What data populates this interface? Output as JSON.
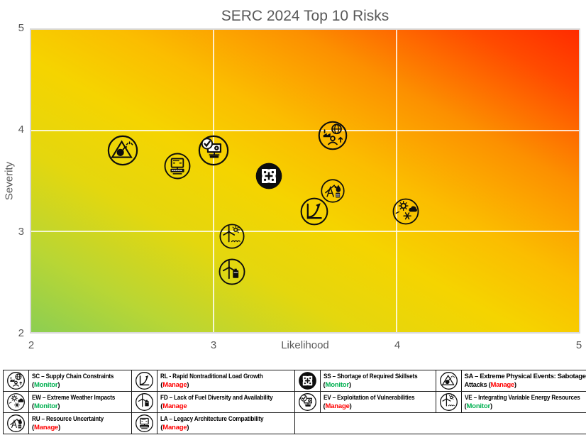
{
  "title": "SERC 2024 Top 10 Risks",
  "axes": {
    "xlabel": "Likelihood",
    "ylabel": "Severity",
    "x_ticks": [
      "2",
      "3",
      "4",
      "5"
    ],
    "y_ticks": [
      "5",
      "4",
      "3",
      "2"
    ]
  },
  "colors": {
    "monitor_green": "#00B050",
    "manage_red": "#FF0000",
    "title_text": "#595959",
    "heat_green": "#8CCE52",
    "heat_yellow": "#F5D400",
    "heat_red": "#FF2B00"
  },
  "chart_data": {
    "type": "scatter",
    "title": "SERC 2024 Top 10 Risks",
    "xlabel": "Likelihood",
    "ylabel": "Severity",
    "xlim": [
      2,
      5
    ],
    "ylim": [
      2,
      5
    ],
    "x_gridlines": [
      3,
      4
    ],
    "y_gridlines": [
      3,
      4
    ],
    "background": "risk heatmap gradient from green (low likelihood/severity) through yellow to red (high likelihood/severity)",
    "points": [
      {
        "code": "SA",
        "name": "Extreme Physical Events: Sabotage & Attacks",
        "x": 2.5,
        "y": 3.8,
        "size": 46
      },
      {
        "code": "LA",
        "name": "Legacy Architecture Compatibility",
        "x": 2.8,
        "y": 3.65,
        "size": 40
      },
      {
        "code": "EV",
        "name": "Exploitation of Vulnerabilities",
        "x": 3.0,
        "y": 3.8,
        "size": 46
      },
      {
        "code": "SC",
        "name": "Supply Chain Constraints",
        "x": 3.65,
        "y": 3.95,
        "size": 44
      },
      {
        "code": "SS",
        "name": "Shortage of Required Skillsets",
        "x": 3.3,
        "y": 3.55,
        "size": 40
      },
      {
        "code": "RU",
        "name": "Resource Uncertainty",
        "x": 3.65,
        "y": 3.4,
        "size": 36
      },
      {
        "code": "RL",
        "name": "Rapid Nontraditional Load Growth",
        "x": 3.55,
        "y": 3.2,
        "size": 42
      },
      {
        "code": "EW",
        "name": "Extreme Weather Impacts",
        "x": 4.05,
        "y": 3.2,
        "size": 40
      },
      {
        "code": "VE",
        "name": "Integrating Variable Energy Resources",
        "x": 3.1,
        "y": 2.95,
        "size": 38
      },
      {
        "code": "FD",
        "name": "Lack of Fuel Diversity and Availability",
        "x": 3.1,
        "y": 2.6,
        "size": 40
      }
    ]
  },
  "legend": {
    "items": [
      {
        "code": "SC",
        "icon": "globe-factory-icon",
        "label": "SC – Supply Chain Constraints",
        "status": "Monitor",
        "status_color": "#00B050",
        "open": "(",
        "close": ")"
      },
      {
        "code": "RL",
        "icon": "load-growth-chart-icon",
        "label": "RL - Rapid Nontraditional Load Growth",
        "status": "Manage",
        "status_color": "#FF0000",
        "open": "(",
        "close": ")"
      },
      {
        "code": "SS",
        "icon": "puzzle-pieces-icon",
        "label": "SS – Shortage of Required Skillsets",
        "status": "Monitor",
        "status_color": "#00B050",
        "open": "(",
        "close": ")"
      },
      {
        "code": "SA",
        "icon": "sabotage-bomb-icon",
        "label": "SA – Extreme Physical Events: Sabotage & Attacks",
        "status": "Manage",
        "status_color": "#FF0000",
        "open": "(",
        "close": ")"
      },
      {
        "code": "EW",
        "icon": "sun-snowflake-icon",
        "label": "EW – Extreme Weather Impacts",
        "status": "Monitor",
        "status_color": "#00B050",
        "open": "(",
        "close": ")"
      },
      {
        "code": "FD",
        "icon": "turbine-fuel-icon",
        "label": "FD – Lack of Fuel Diversity and Availability",
        "status": "Manage",
        "status_color": "#FF0000",
        "open": "(",
        "close": ""
      },
      {
        "code": "EV",
        "icon": "computer-check-icon",
        "label": "EV – Exploitation of Vulnerabilities",
        "status": "Manage",
        "status_color": "#FF0000",
        "open": "(",
        "close": ")"
      },
      {
        "code": "VE",
        "icon": "turbine-sun-icon",
        "label": "VE – Integrating Variable Energy Resources",
        "status": "Monitor",
        "status_color": "#00B050",
        "open": "(",
        "close": ")"
      },
      {
        "code": "RU",
        "icon": "oil-pump-droplet-icon",
        "label": "RU – Resource Uncertainty",
        "status": "Manage",
        "status_color": "#FF0000",
        "open": "(",
        "close": ")"
      },
      {
        "code": "LA",
        "icon": "legacy-computer-icon",
        "label": "LA – Legacy Architecture Compatibility",
        "status": "Manage",
        "status_color": "#FF0000",
        "open": "(",
        "close": ")"
      }
    ]
  }
}
